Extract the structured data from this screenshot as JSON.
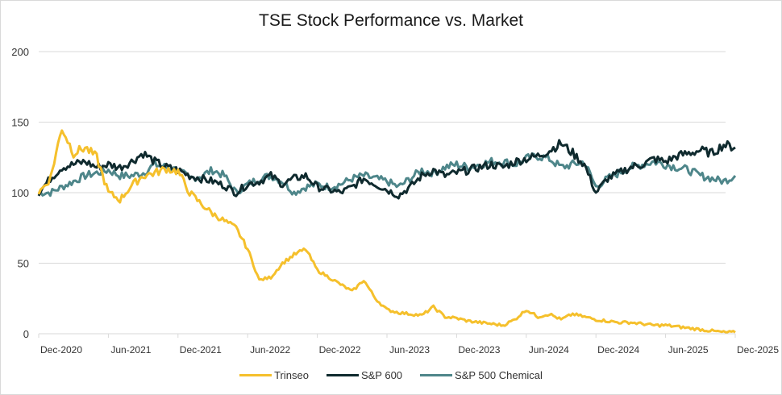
{
  "chart_data": {
    "type": "line",
    "title": "TSE Stock Performance vs. Market",
    "xlabel": "",
    "ylabel": "",
    "ylim": [
      0,
      200
    ],
    "yticks": [
      0,
      50,
      100,
      150,
      200
    ],
    "xticks": [
      "Dec-2020",
      "Jun-2021",
      "Dec-2021",
      "Jun-2022",
      "Dec-2022",
      "Jun-2023",
      "Dec-2023",
      "Jun-2024",
      "Dec-2024",
      "Jun-2025",
      "Dec-2025"
    ],
    "x_months_from_dec_2020": [
      0,
      1,
      2,
      3,
      4,
      5,
      6,
      7,
      8,
      9,
      10,
      11,
      12,
      13,
      14,
      15,
      16,
      17,
      18,
      19,
      20,
      21,
      22,
      23,
      24,
      25,
      26,
      27,
      28,
      29,
      30,
      31,
      32,
      33,
      34,
      35,
      36,
      37,
      38,
      39,
      40,
      41,
      42,
      43,
      44,
      45,
      46,
      47,
      48,
      49,
      50,
      51,
      52,
      53,
      54,
      55,
      56,
      57,
      58,
      59,
      60
    ],
    "grid": true,
    "legend_position": "bottom",
    "series": [
      {
        "name": "Trinseo",
        "color": "#F5C02C",
        "values": [
          100,
          110,
          146,
          128,
          132,
          125,
          100,
          95,
          105,
          112,
          114,
          117,
          115,
          100,
          92,
          85,
          80,
          75,
          60,
          38,
          40,
          50,
          56,
          60,
          45,
          40,
          35,
          30,
          38,
          25,
          17,
          15,
          14,
          13,
          19,
          12,
          11,
          9,
          8,
          7,
          6,
          10,
          17,
          12,
          14,
          10,
          14,
          12,
          10,
          9,
          8,
          8,
          7,
          6,
          6,
          5,
          4,
          3,
          2,
          1,
          1
        ],
        "values_note": "approximate monthly readings; final point ~Nov-2025"
      },
      {
        "name": "S&P 600",
        "color": "#0F2A2E",
        "values": [
          100,
          110,
          118,
          120,
          122,
          118,
          120,
          118,
          122,
          128,
          122,
          118,
          116,
          112,
          110,
          108,
          105,
          100,
          106,
          108,
          112,
          106,
          110,
          112,
          104,
          102,
          100,
          104,
          110,
          106,
          102,
          98,
          104,
          112,
          116,
          112,
          114,
          116,
          118,
          120,
          118,
          122,
          124,
          126,
          130,
          135,
          128,
          120,
          100,
          110,
          114,
          118,
          120,
          124,
          122,
          126,
          128,
          130,
          128,
          134,
          132
        ],
        "values_note": "approximate monthly readings"
      },
      {
        "name": "S&P 500 Chemical",
        "color": "#4E868A",
        "values": [
          100,
          100,
          104,
          108,
          112,
          114,
          116,
          112,
          112,
          114,
          120,
          118,
          116,
          110,
          112,
          116,
          112,
          100,
          106,
          110,
          112,
          108,
          100,
          104,
          106,
          104,
          106,
          110,
          112,
          110,
          108,
          104,
          110,
          116,
          114,
          118,
          120,
          118,
          120,
          122,
          122,
          120,
          124,
          126,
          124,
          118,
          120,
          122,
          104,
          110,
          114,
          118,
          120,
          122,
          120,
          118,
          116,
          112,
          110,
          108,
          112
        ],
        "values_note": "approximate monthly readings"
      }
    ]
  },
  "legend": {
    "items": [
      {
        "label": "Trinseo",
        "color": "#F5C02C"
      },
      {
        "label": "S&P 600",
        "color": "#0F2A2E"
      },
      {
        "label": "S&P 500 Chemical",
        "color": "#4E868A"
      }
    ]
  }
}
